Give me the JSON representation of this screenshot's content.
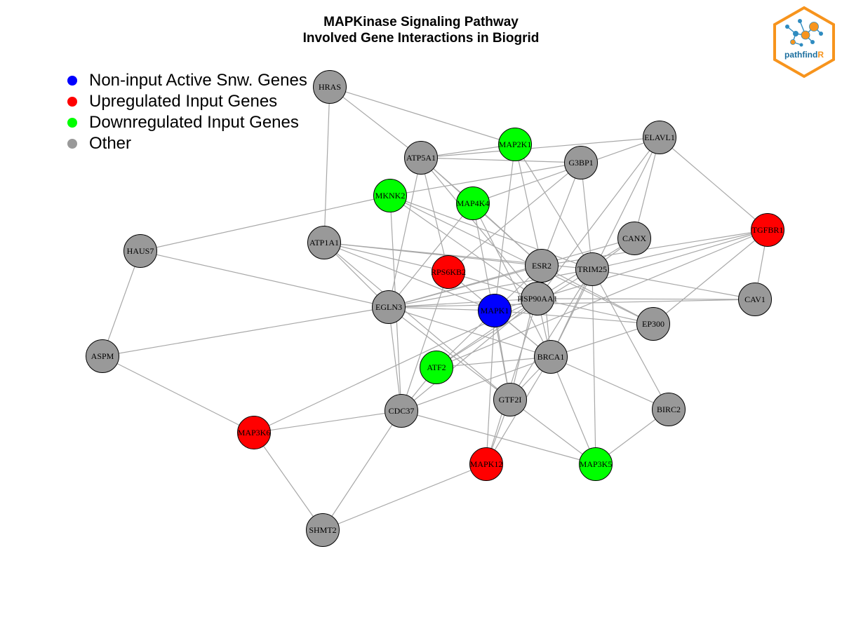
{
  "title": {
    "line1": "MAPKinase Signaling Pathway",
    "line2": "Involved Gene Interactions in Biogrid"
  },
  "legend": [
    {
      "label": "Non-input Active Snw. Genes",
      "color": "#0000ff"
    },
    {
      "label": "Upregulated Input Genes",
      "color": "#ff0000"
    },
    {
      "label": "Downregulated Input Genes",
      "color": "#00ff00"
    },
    {
      "label": "Other",
      "color": "#999999"
    }
  ],
  "colors": {
    "edge": "#a8a8a8",
    "node_border": "#000000",
    "logo_orange": "#f7941d",
    "logo_blue": "#2e8bc0",
    "logo_text_dark": "#1a6e9e"
  },
  "logo": {
    "text_main": "pathfind",
    "text_accent": "R"
  },
  "nodes": [
    {
      "id": "HRAS",
      "label": "HRAS",
      "group": "Other"
    },
    {
      "id": "MAP2K1",
      "label": "MAP2K1",
      "group": "Downregulated Input Genes"
    },
    {
      "id": "ELAVL1",
      "label": "ELAVL1",
      "group": "Other"
    },
    {
      "id": "ATP5A1",
      "label": "ATP5A1",
      "group": "Other"
    },
    {
      "id": "G3BP1",
      "label": "G3BP1",
      "group": "Other"
    },
    {
      "id": "MKNK2",
      "label": "MKNK2",
      "group": "Downregulated Input Genes"
    },
    {
      "id": "MAP4K4",
      "label": "MAP4K4",
      "group": "Downregulated Input Genes"
    },
    {
      "id": "TGFBR1",
      "label": "TGFBR1",
      "group": "Upregulated Input Genes"
    },
    {
      "id": "CANX",
      "label": "CANX",
      "group": "Other"
    },
    {
      "id": "ATP1A1",
      "label": "ATP1A1",
      "group": "Other"
    },
    {
      "id": "HAUS7",
      "label": "HAUS7",
      "group": "Other"
    },
    {
      "id": "RPS6KB2",
      "label": "RPS6KB2",
      "group": "Upregulated Input Genes"
    },
    {
      "id": "ESR2",
      "label": "ESR2",
      "group": "Other"
    },
    {
      "id": "TRIM25",
      "label": "TRIM25",
      "group": "Other"
    },
    {
      "id": "HSP90AA1",
      "label": "HSP90AA1",
      "group": "Other"
    },
    {
      "id": "CAV1",
      "label": "CAV1",
      "group": "Other"
    },
    {
      "id": "EGLN3",
      "label": "EGLN3",
      "group": "Other"
    },
    {
      "id": "MAPK1",
      "label": "MAPK1",
      "group": "Non-input Active Snw. Genes"
    },
    {
      "id": "EP300",
      "label": "EP300",
      "group": "Other"
    },
    {
      "id": "ASPM",
      "label": "ASPM",
      "group": "Other"
    },
    {
      "id": "BRCA1",
      "label": "BRCA1",
      "group": "Other"
    },
    {
      "id": "ATF2",
      "label": "ATF2",
      "group": "Downregulated Input Genes"
    },
    {
      "id": "GTF2I",
      "label": "GTF2I",
      "group": "Other"
    },
    {
      "id": "BIRC2",
      "label": "BIRC2",
      "group": "Other"
    },
    {
      "id": "CDC37",
      "label": "CDC37",
      "group": "Other"
    },
    {
      "id": "MAP3K6",
      "label": "MAP3K6",
      "group": "Upregulated Input Genes"
    },
    {
      "id": "MAPK12",
      "label": "MAPK12",
      "group": "Upregulated Input Genes"
    },
    {
      "id": "MAP3K5",
      "label": "MAP3K5",
      "group": "Downregulated Input Genes"
    },
    {
      "id": "SHMT2",
      "label": "SHMT2",
      "group": "Other"
    }
  ],
  "edges": [
    [
      "HRAS",
      "ATP5A1"
    ],
    [
      "HRAS",
      "ATP1A1"
    ],
    [
      "HRAS",
      "MAP2K1"
    ],
    [
      "ATP5A1",
      "MAP2K1"
    ],
    [
      "ATP5A1",
      "G3BP1"
    ],
    [
      "ATP5A1",
      "ELAVL1"
    ],
    [
      "ATP5A1",
      "MAP4K4"
    ],
    [
      "ATP5A1",
      "RPS6KB2"
    ],
    [
      "ATP5A1",
      "EGLN3"
    ],
    [
      "ATP5A1",
      "ESR2"
    ],
    [
      "ATP5A1",
      "HSP90AA1"
    ],
    [
      "MAP2K1",
      "MAPK1"
    ],
    [
      "MAP2K1",
      "TRIM25"
    ],
    [
      "MAP2K1",
      "ESR2"
    ],
    [
      "ELAVL1",
      "TGFBR1"
    ],
    [
      "ELAVL1",
      "CANX"
    ],
    [
      "ELAVL1",
      "HSP90AA1"
    ],
    [
      "ELAVL1",
      "BRCA1"
    ],
    [
      "ELAVL1",
      "MAP4K4"
    ],
    [
      "G3BP1",
      "TRIM25"
    ],
    [
      "G3BP1",
      "ESR2"
    ],
    [
      "G3BP1",
      "RPS6KB2"
    ],
    [
      "MKNK2",
      "HAUS7"
    ],
    [
      "MKNK2",
      "G3BP1"
    ],
    [
      "MKNK2",
      "TRIM25"
    ],
    [
      "MKNK2",
      "EP300"
    ],
    [
      "MKNK2",
      "CDC37"
    ],
    [
      "MKNK2",
      "HSP90AA1"
    ],
    [
      "MAP4K4",
      "ESR2"
    ],
    [
      "MAP4K4",
      "BRCA1"
    ],
    [
      "MAP4K4",
      "EGLN3"
    ],
    [
      "MAP4K4",
      "GTF2I"
    ],
    [
      "TGFBR1",
      "CAV1"
    ],
    [
      "TGFBR1",
      "EP300"
    ],
    [
      "TGFBR1",
      "TRIM25"
    ],
    [
      "TGFBR1",
      "HSP90AA1"
    ],
    [
      "TGFBR1",
      "ESR2"
    ],
    [
      "TGFBR1",
      "ATF2"
    ],
    [
      "CANX",
      "TRIM25"
    ],
    [
      "CANX",
      "EGLN3"
    ],
    [
      "CANX",
      "HSP90AA1"
    ],
    [
      "ATP1A1",
      "RPS6KB2"
    ],
    [
      "ATP1A1",
      "ESR2"
    ],
    [
      "ATP1A1",
      "TRIM25"
    ],
    [
      "ATP1A1",
      "EGLN3"
    ],
    [
      "ATP1A1",
      "GTF2I"
    ],
    [
      "ATP1A1",
      "MAPK1"
    ],
    [
      "HAUS7",
      "EGLN3"
    ],
    [
      "HAUS7",
      "ASPM"
    ],
    [
      "RPS6KB2",
      "BRCA1"
    ],
    [
      "RPS6KB2",
      "CDC37"
    ],
    [
      "RPS6KB2",
      "HSP90AA1"
    ],
    [
      "ESR2",
      "MAPK1"
    ],
    [
      "ESR2",
      "BRCA1"
    ],
    [
      "ESR2",
      "EGLN3"
    ],
    [
      "ESR2",
      "GTF2I"
    ],
    [
      "ESR2",
      "EP300"
    ],
    [
      "TRIM25",
      "EGLN3"
    ],
    [
      "TRIM25",
      "BRCA1"
    ],
    [
      "TRIM25",
      "CAV1"
    ],
    [
      "TRIM25",
      "GTF2I"
    ],
    [
      "TRIM25",
      "ATF2"
    ],
    [
      "TRIM25",
      "MAP3K5"
    ],
    [
      "TRIM25",
      "BIRC2"
    ],
    [
      "HSP90AA1",
      "CAV1"
    ],
    [
      "HSP90AA1",
      "EGLN3"
    ],
    [
      "HSP90AA1",
      "MAPK1"
    ],
    [
      "HSP90AA1",
      "BRCA1"
    ],
    [
      "HSP90AA1",
      "ATF2"
    ],
    [
      "HSP90AA1",
      "CDC37"
    ],
    [
      "HSP90AA1",
      "MAP3K6"
    ],
    [
      "HSP90AA1",
      "MAPK12"
    ],
    [
      "HSP90AA1",
      "EP300"
    ],
    [
      "EGLN3",
      "ASPM"
    ],
    [
      "EGLN3",
      "CAV1"
    ],
    [
      "EGLN3",
      "BRCA1"
    ],
    [
      "EGLN3",
      "GTF2I"
    ],
    [
      "EGLN3",
      "CDC37"
    ],
    [
      "EGLN3",
      "MAPK1"
    ],
    [
      "MAPK1",
      "EP300"
    ],
    [
      "MAPK1",
      "ATF2"
    ],
    [
      "MAPK1",
      "GTF2I"
    ],
    [
      "MAPK1",
      "MAPK12"
    ],
    [
      "MAPK1",
      "BRCA1"
    ],
    [
      "EP300",
      "BRCA1"
    ],
    [
      "ASPM",
      "MAP3K6"
    ],
    [
      "BRCA1",
      "ATF2"
    ],
    [
      "BRCA1",
      "GTF2I"
    ],
    [
      "BRCA1",
      "BIRC2"
    ],
    [
      "BRCA1",
      "MAP3K5"
    ],
    [
      "BRCA1",
      "MAPK12"
    ],
    [
      "BRCA1",
      "CDC37"
    ],
    [
      "ATF2",
      "CDC37"
    ],
    [
      "GTF2I",
      "MAPK12"
    ],
    [
      "GTF2I",
      "MAP3K5"
    ],
    [
      "BIRC2",
      "MAP3K5"
    ],
    [
      "CDC37",
      "MAP3K6"
    ],
    [
      "CDC37",
      "SHMT2"
    ],
    [
      "CDC37",
      "MAP3K5"
    ],
    [
      "MAP3K6",
      "SHMT2"
    ],
    [
      "MAPK12",
      "SHMT2"
    ]
  ]
}
